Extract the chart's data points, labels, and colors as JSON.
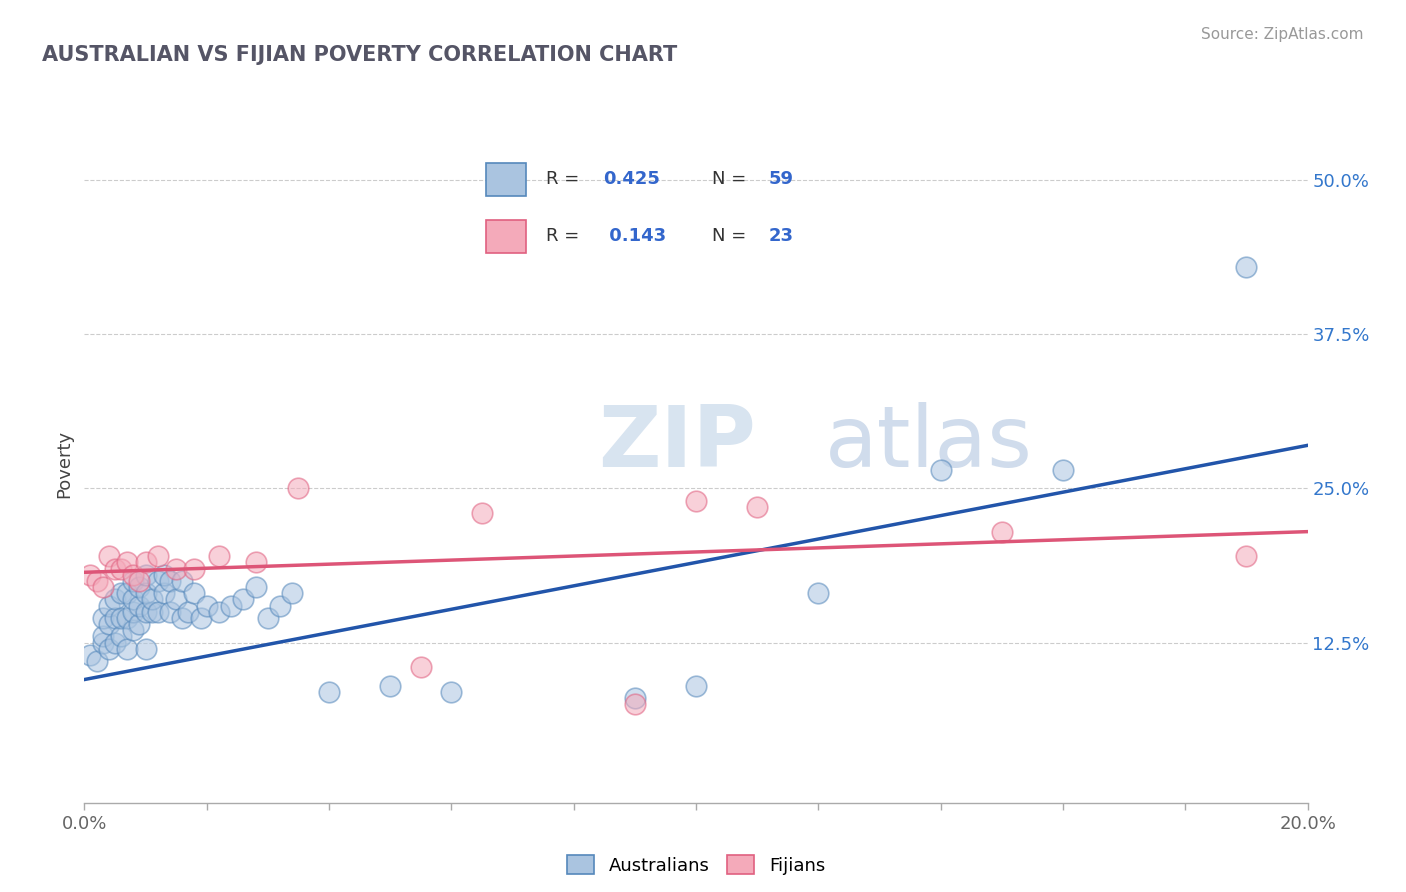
{
  "title": "AUSTRALIAN VS FIJIAN POVERTY CORRELATION CHART",
  "source": "Source: ZipAtlas.com",
  "ylabel": "Poverty",
  "xlim": [
    0.0,
    0.2
  ],
  "ylim": [
    -0.005,
    0.545
  ],
  "yticks": [
    0.125,
    0.25,
    0.375,
    0.5
  ],
  "ytick_labels": [
    "12.5%",
    "25.0%",
    "37.5%",
    "50.0%"
  ],
  "xticks": [
    0.0,
    0.02,
    0.04,
    0.06,
    0.08,
    0.1,
    0.12,
    0.14,
    0.16,
    0.18,
    0.2
  ],
  "xtick_labels": [
    "0.0%",
    "",
    "",
    "",
    "",
    "",
    "",
    "",
    "",
    "",
    "20.0%"
  ],
  "legend_R_blue": "0.425",
  "legend_N_blue": "59",
  "legend_R_pink": "0.143",
  "legend_N_pink": "23",
  "blue_color": "#aac4e0",
  "pink_color": "#f4aaba",
  "blue_edge_color": "#5588bb",
  "pink_edge_color": "#e06080",
  "line_blue_color": "#2255aa",
  "line_pink_color": "#dd5577",
  "watermark_zip": "ZIP",
  "watermark_atlas": "atlas",
  "blue_scatter_x": [
    0.001,
    0.002,
    0.003,
    0.003,
    0.003,
    0.004,
    0.004,
    0.004,
    0.005,
    0.005,
    0.005,
    0.006,
    0.006,
    0.006,
    0.007,
    0.007,
    0.007,
    0.008,
    0.008,
    0.008,
    0.008,
    0.009,
    0.009,
    0.009,
    0.01,
    0.01,
    0.01,
    0.01,
    0.011,
    0.011,
    0.012,
    0.012,
    0.013,
    0.013,
    0.014,
    0.014,
    0.015,
    0.016,
    0.016,
    0.017,
    0.018,
    0.019,
    0.02,
    0.022,
    0.024,
    0.026,
    0.028,
    0.03,
    0.032,
    0.034,
    0.04,
    0.05,
    0.06,
    0.09,
    0.1,
    0.12,
    0.14,
    0.16,
    0.19
  ],
  "blue_scatter_y": [
    0.115,
    0.11,
    0.125,
    0.13,
    0.145,
    0.12,
    0.14,
    0.155,
    0.125,
    0.145,
    0.16,
    0.13,
    0.145,
    0.165,
    0.12,
    0.145,
    0.165,
    0.135,
    0.15,
    0.16,
    0.175,
    0.14,
    0.155,
    0.17,
    0.12,
    0.15,
    0.165,
    0.18,
    0.15,
    0.16,
    0.15,
    0.175,
    0.165,
    0.18,
    0.15,
    0.175,
    0.16,
    0.145,
    0.175,
    0.15,
    0.165,
    0.145,
    0.155,
    0.15,
    0.155,
    0.16,
    0.17,
    0.145,
    0.155,
    0.165,
    0.085,
    0.09,
    0.085,
    0.08,
    0.09,
    0.165,
    0.265,
    0.265,
    0.43
  ],
  "pink_scatter_x": [
    0.001,
    0.002,
    0.003,
    0.004,
    0.005,
    0.006,
    0.007,
    0.008,
    0.009,
    0.01,
    0.012,
    0.015,
    0.018,
    0.022,
    0.028,
    0.035,
    0.055,
    0.065,
    0.09,
    0.1,
    0.11,
    0.15,
    0.19
  ],
  "pink_scatter_y": [
    0.18,
    0.175,
    0.17,
    0.195,
    0.185,
    0.185,
    0.19,
    0.18,
    0.175,
    0.19,
    0.195,
    0.185,
    0.185,
    0.195,
    0.19,
    0.25,
    0.105,
    0.23,
    0.075,
    0.24,
    0.235,
    0.215,
    0.195
  ],
  "blue_trend_x": [
    0.0,
    0.2
  ],
  "blue_trend_y": [
    0.095,
    0.285
  ],
  "pink_trend_x": [
    0.0,
    0.2
  ],
  "pink_trend_y": [
    0.182,
    0.215
  ],
  "background_color": "#ffffff",
  "grid_color": "#cccccc"
}
